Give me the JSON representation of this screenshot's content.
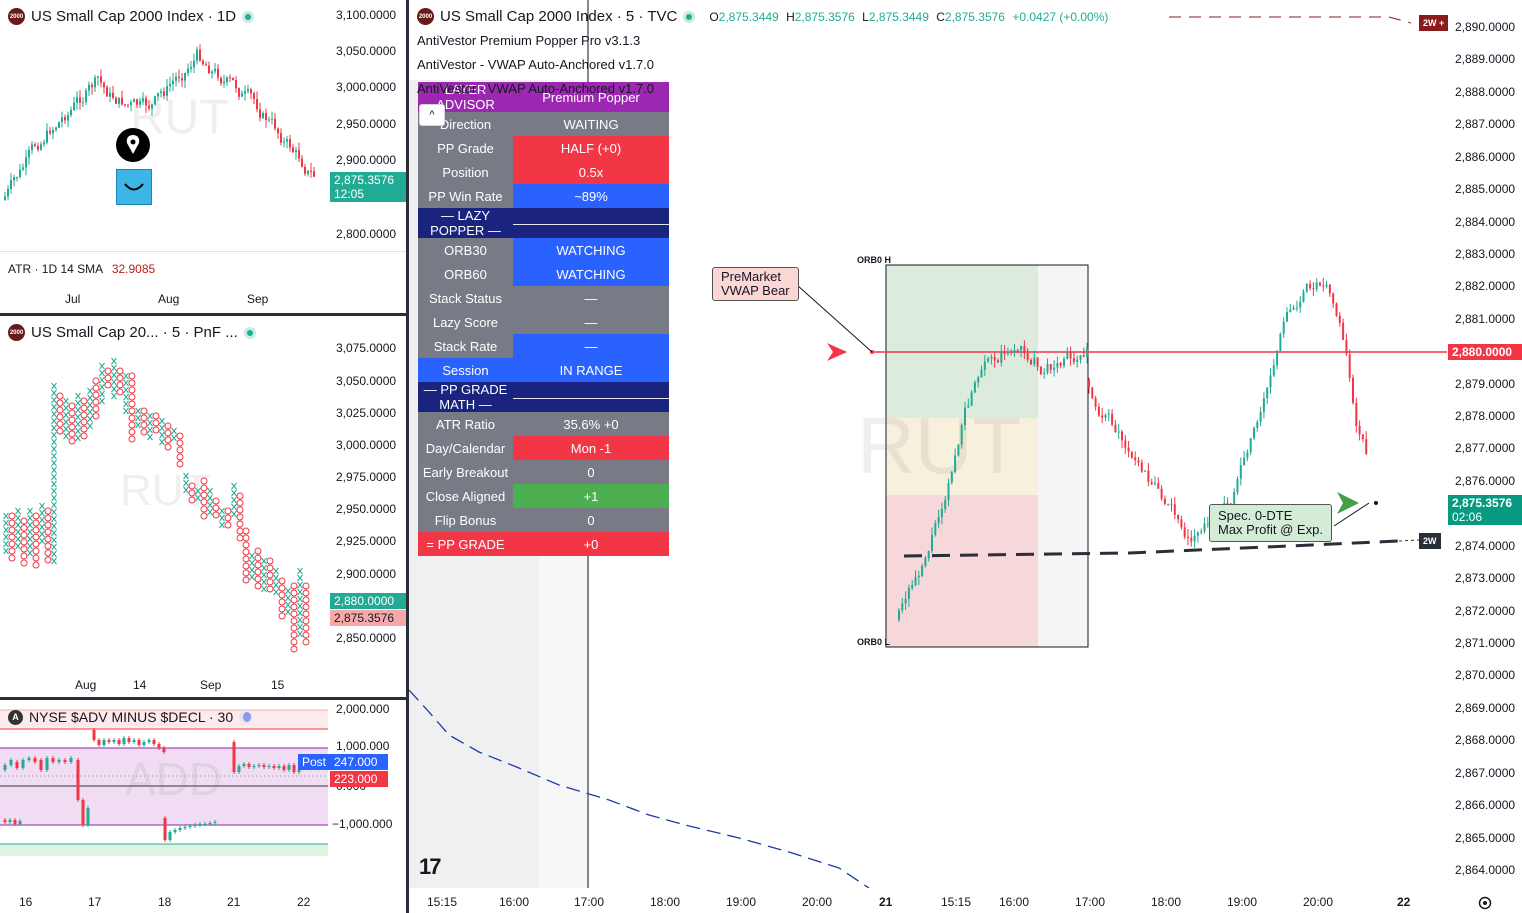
{
  "colors": {
    "up": "#22ab94",
    "down": "#f23645",
    "accent_blue": "#2962ff",
    "navy": "#1a237e",
    "grey": "#787b86"
  },
  "pane_daily": {
    "symbol_badge": "2000",
    "title": "US Small Cap 2000 Index · 1D",
    "price_ticks": [
      "3,100.0000",
      "3,050.0000",
      "3,000.0000",
      "2,950.0000",
      "2,900.0000",
      "2,800.0000"
    ],
    "last_price": "2,875.3576",
    "countdown": "12:05",
    "indicator_label": "ATR · 1D 14 SMA",
    "indicator_value": "32.9085",
    "time_ticks": [
      "Jul",
      "Aug",
      "Sep"
    ],
    "watermark": "RUT",
    "alert_icon": "pen-nib-icon",
    "emoji_icon": "smile-icon"
  },
  "pane_pnf": {
    "symbol_badge": "2000",
    "title": "US Small Cap 20... · 5 · PnF ...",
    "price_ticks": [
      "3,075.0000",
      "3,050.0000",
      "3,025.0000",
      "3,000.0000",
      "2,975.0000",
      "2,950.0000",
      "2,925.0000",
      "2,900.0000",
      "2,850.0000"
    ],
    "tag_green": "2,880.0000",
    "tag_red": "2,875.3576",
    "time_ticks": [
      "Aug",
      "14",
      "Sep",
      "15"
    ],
    "watermark": "RUT"
  },
  "pane_add": {
    "symbol_badge": "A",
    "title": "NYSE $ADV MINUS $DECL · 30",
    "price_ticks": [
      "2,000.000",
      "1,000.000",
      "0.000",
      "−1,000.000"
    ],
    "post_label": "Post",
    "tag_blue": "247.000",
    "tag_red": "223.000",
    "time_ticks": [
      "16",
      "17",
      "18",
      "21",
      "22"
    ],
    "watermark": "ADD"
  },
  "main": {
    "symbol_badge": "2000",
    "title": "US Small Cap 2000 Index · 5 · TVC",
    "ohlc": {
      "o_label": "O",
      "o": "2,875.3449",
      "h_label": "H",
      "h": "2,875.3576",
      "l_label": "L",
      "l": "2,875.3449",
      "c_label": "C",
      "c": "2,875.3576",
      "change": "+0.0427 (+0.00%)"
    },
    "studies": [
      "AntiVestor Premium Popper Pro v3.1.3",
      "AntiVestor - VWAP Auto-Anchored v1.7.0",
      "AntiVestor - VWAP Auto-Anchored v1.7.0"
    ],
    "collapse_glyph": "^",
    "table_header_left": "LAYER ADVISOR",
    "table_header_right": "Premium Popper",
    "table_rows": [
      {
        "label": "Direction",
        "value": "WAITING",
        "lc": "grey",
        "vc": "grey"
      },
      {
        "label": "PP Grade",
        "value": "HALF (+0)",
        "lc": "grey",
        "vc": "red"
      },
      {
        "label": "Position",
        "value": "0.5x",
        "lc": "grey",
        "vc": "red"
      },
      {
        "label": "PP Win Rate",
        "value": "~89%",
        "lc": "grey",
        "vc": "blue"
      },
      {
        "label": "— LAZY POPPER —",
        "value": "————————————",
        "lc": "navy",
        "vc": "navy"
      },
      {
        "label": "ORB30",
        "value": "WATCHING",
        "lc": "grey",
        "vc": "blue"
      },
      {
        "label": "ORB60",
        "value": "WATCHING",
        "lc": "grey",
        "vc": "blue"
      },
      {
        "label": "Stack Status",
        "value": "—",
        "lc": "grey",
        "vc": "grey"
      },
      {
        "label": "Lazy Score",
        "value": "—",
        "lc": "grey",
        "vc": "grey"
      },
      {
        "label": "Stack Rate",
        "value": "—",
        "lc": "grey",
        "vc": "blue"
      },
      {
        "label": "Session",
        "value": "IN RANGE",
        "lc": "blue",
        "vc": "blue"
      },
      {
        "label": "— PP GRADE MATH —",
        "value": "————————————",
        "lc": "navy",
        "vc": "navy"
      },
      {
        "label": "ATR Ratio",
        "value": "35.6% +0",
        "lc": "grey",
        "vc": "grey"
      },
      {
        "label": "Day/Calendar",
        "value": "Mon -1",
        "lc": "grey",
        "vc": "red"
      },
      {
        "label": "Early Breakout",
        "value": "0",
        "lc": "grey",
        "vc": "grey"
      },
      {
        "label": "Close Aligned",
        "value": "+1",
        "lc": "grey",
        "vc": "green"
      },
      {
        "label": "Flip Bonus",
        "value": "0",
        "lc": "grey",
        "vc": "grey"
      },
      {
        "label": "= PP GRADE",
        "value": "+0",
        "lc": "red",
        "vc": "red"
      }
    ],
    "price_ticks": [
      "2,890.0000",
      "2,889.0000",
      "2,888.0000",
      "2,887.0000",
      "2,886.0000",
      "2,885.0000",
      "2,884.0000",
      "2,883.0000",
      "2,882.0000",
      "2,881.0000",
      "2,880.0000",
      "2,879.0000",
      "2,878.0000",
      "2,877.0000",
      "2,876.0000",
      "2,875.3576",
      "2,874.0000",
      "2,873.0000",
      "2,872.0000",
      "2,871.0000",
      "2,870.0000",
      "2,869.0000",
      "2,868.0000",
      "2,867.0000",
      "2,866.0000",
      "2,865.0000",
      "2,864.0000"
    ],
    "price_tag_red": "2,880.0000",
    "price_tag_green": "2,875.3576",
    "price_tag_countdown": "02:06",
    "tag_2w_top": "2W +",
    "tag_2w_mid": "2W",
    "time_ticks": [
      "15:15",
      "16:00",
      "17:00",
      "18:00",
      "19:00",
      "20:00",
      "21",
      "15:15",
      "16:00",
      "17:00",
      "18:00",
      "19:00",
      "20:00",
      "22"
    ],
    "orb_h": "ORB0 H",
    "orb_l": "ORB0 L",
    "premarket_line1": "PreMarket",
    "premarket_line2": "VWAP Bear",
    "spec_line1": "Spec. 0-DTE",
    "spec_line2": "Max Profit @ Exp.",
    "watermark": "RUT",
    "tv_logo": "17",
    "settings_icon": "gear-icon"
  }
}
